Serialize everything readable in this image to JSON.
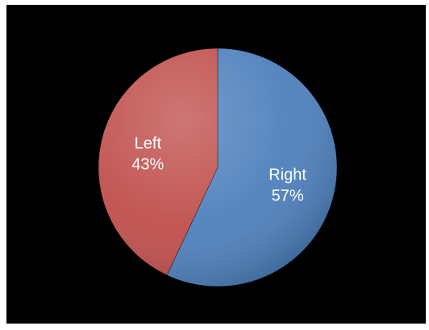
{
  "chart_data": {
    "type": "pie",
    "title": "",
    "start_angle_deg": 0,
    "direction": "clockwise",
    "slices": [
      {
        "category": "Right",
        "value": 57,
        "value_label": "57%",
        "color": "#4f81bd"
      },
      {
        "category": "Left",
        "value": 43,
        "value_label": "43%",
        "color": "#c0504d"
      }
    ],
    "legend": "none",
    "background": "#000000"
  }
}
